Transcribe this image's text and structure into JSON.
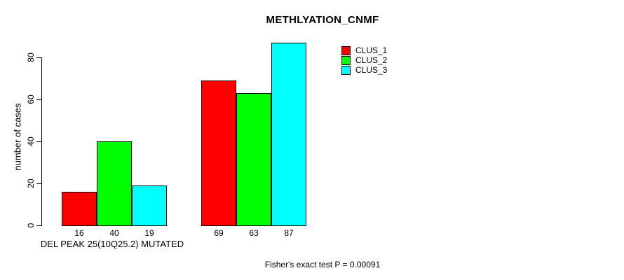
{
  "title": "METHLYATION_CNMF",
  "ylabel": "number of cases",
  "group_label": "DEL PEAK 25(10Q25.2) MUTATED",
  "footer": "Fisher's exact test P = 0.00091",
  "chart_data": {
    "type": "bar",
    "title": "METHLYATION_CNMF",
    "xlabel": "",
    "ylabel": "number of cases",
    "ylim": [
      0,
      87
    ],
    "yticks": [
      0,
      20,
      40,
      60,
      80
    ],
    "grid": false,
    "legend_position": "top-right",
    "categories": [
      "DEL PEAK 25(10Q25.2) MUTATED",
      "(unlabeled group)"
    ],
    "series": [
      {
        "name": "CLUS_1",
        "color": "#ff0000",
        "values": [
          16,
          69
        ]
      },
      {
        "name": "CLUS_2",
        "color": "#00ff00",
        "values": [
          40,
          63
        ]
      },
      {
        "name": "CLUS_3",
        "color": "#00ffff",
        "values": [
          19,
          87
        ]
      }
    ],
    "bar_value_labels": [
      [
        16,
        40,
        19
      ],
      [
        69,
        63,
        87
      ]
    ],
    "annotation": "Fisher's exact test P = 0.00091"
  }
}
